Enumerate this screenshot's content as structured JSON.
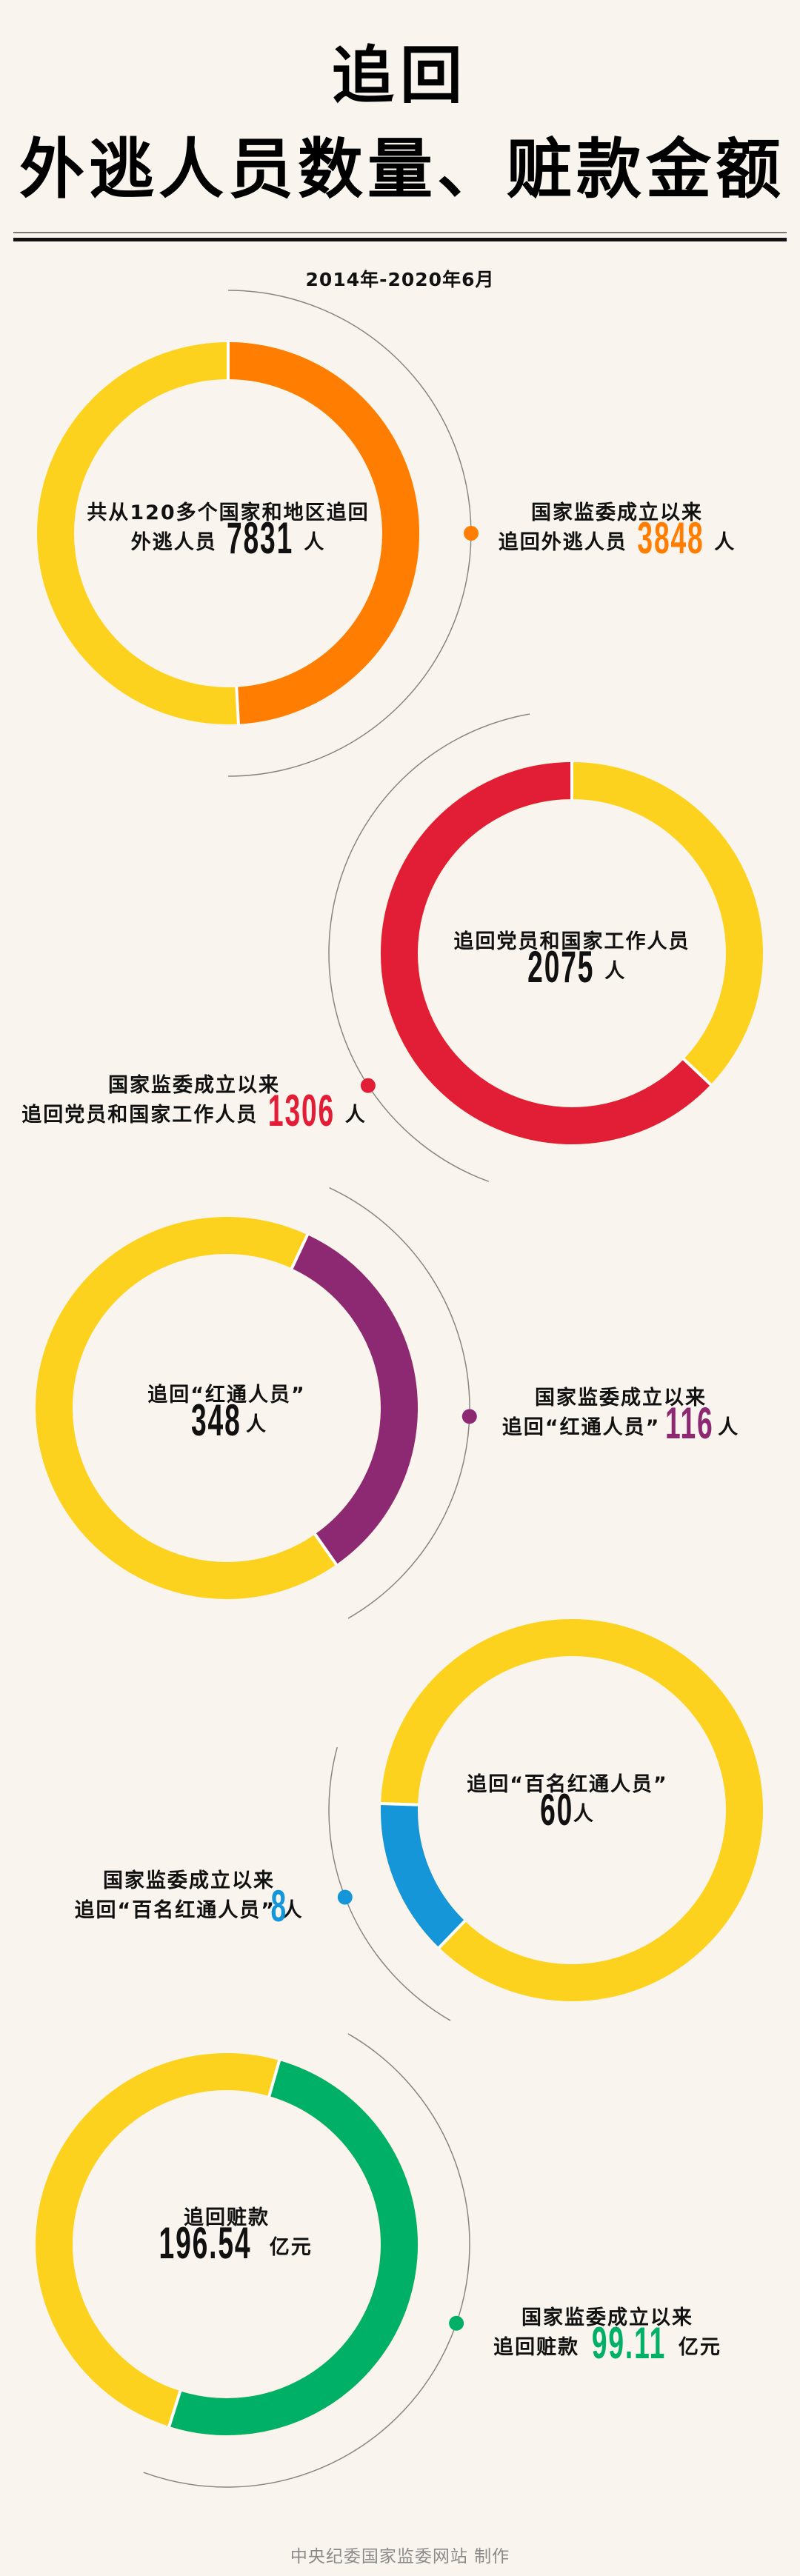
{
  "title": {
    "line1": "追回",
    "line2": "外逃人员数量、赃款金额"
  },
  "date_range": "2014年-2020年6月",
  "footer": "中央纪委国家监委网站 制作",
  "colors": {
    "background": "#f9f5ee",
    "total": "#fcd21e"
  },
  "chart_data": [
    {
      "type": "pie",
      "variant": "donut",
      "center": {
        "text": "共从120多个国家和地区追回",
        "prefix": "外逃人员",
        "value_label": "7831",
        "unit": "人"
      },
      "side": {
        "text": "国家监委成立以来",
        "prefix": "追回外逃人员",
        "value_label": "3848",
        "unit": "人"
      },
      "total": 7831,
      "part": 3848,
      "part_color": "#ff7d00"
    },
    {
      "type": "pie",
      "variant": "donut",
      "center": {
        "text": "追回党员和国家工作人员",
        "prefix": "",
        "value_label": "2075",
        "unit": "人"
      },
      "side": {
        "text": "国家监委成立以来",
        "prefix": "追回党员和国家工作人员",
        "value_label": "1306",
        "unit": "人"
      },
      "total": 2075,
      "part": 1306,
      "part_color": "#e21d36"
    },
    {
      "type": "pie",
      "variant": "donut",
      "center": {
        "text": "追回“红通人员”",
        "prefix": "",
        "value_label": "348",
        "unit": "人"
      },
      "side": {
        "text": "国家监委成立以来",
        "prefix": "追回“红通人员”",
        "value_label": "116",
        "unit": "人"
      },
      "total": 348,
      "part": 116,
      "part_color": "#8d2873"
    },
    {
      "type": "pie",
      "variant": "donut",
      "center": {
        "text": "追回“百名红通人员”",
        "prefix": "",
        "value_label": "60",
        "unit": "人"
      },
      "side": {
        "text": "国家监委成立以来",
        "prefix": "追回“百名红通人员”",
        "value_label": "8",
        "unit": "人"
      },
      "total": 60,
      "part": 8,
      "part_color": "#1496d9"
    },
    {
      "type": "pie",
      "variant": "donut",
      "center": {
        "text": "追回赃款",
        "prefix": "",
        "value_label": "196.54",
        "unit": "亿元"
      },
      "side": {
        "text": "国家监委成立以来",
        "prefix": "追回赃款",
        "value_label": "99.11",
        "unit": "亿元"
      },
      "total": 196.54,
      "part": 99.11,
      "part_color": "#00b066"
    }
  ]
}
